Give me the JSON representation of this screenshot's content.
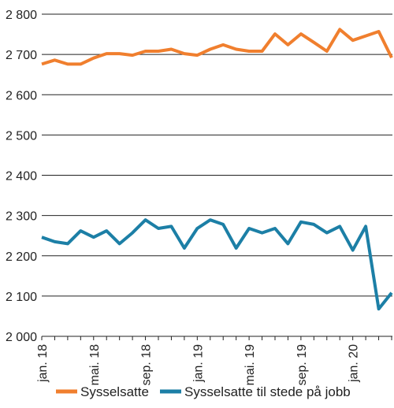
{
  "chart_data": {
    "type": "line",
    "title": "",
    "xlabel": "",
    "ylabel": "",
    "ylim": [
      2000,
      2800
    ],
    "y_ticks": [
      2000,
      2100,
      2200,
      2300,
      2400,
      2500,
      2600,
      2700,
      2800
    ],
    "y_tick_labels": [
      "2 000",
      "2 100",
      "2 200",
      "2 300",
      "2 400",
      "2 500",
      "2 600",
      "2 700",
      "2 800"
    ],
    "x": [
      "2018-01",
      "2018-02",
      "2018-03",
      "2018-04",
      "2018-05",
      "2018-06",
      "2018-07",
      "2018-08",
      "2018-09",
      "2018-10",
      "2018-11",
      "2018-12",
      "2019-01",
      "2019-02",
      "2019-03",
      "2019-04",
      "2019-05",
      "2019-06",
      "2019-07",
      "2019-08",
      "2019-09",
      "2019-10",
      "2019-11",
      "2019-12",
      "2020-01",
      "2020-02",
      "2020-03",
      "2020-04"
    ],
    "x_tick_labels": [
      {
        "x": "2018-01",
        "label": "jan. 18"
      },
      {
        "x": "2018-05",
        "label": "mai. 18"
      },
      {
        "x": "2018-09",
        "label": "sep. 18"
      },
      {
        "x": "2019-01",
        "label": "jan. 19"
      },
      {
        "x": "2019-05",
        "label": "mai. 19"
      },
      {
        "x": "2019-09",
        "label": "sep. 19"
      },
      {
        "x": "2020-01",
        "label": "jan. 20"
      }
    ],
    "grid": "horizontal",
    "legend_position": "bottom",
    "series": [
      {
        "name": "Sysselsatte",
        "color": "#f07f2e",
        "values": [
          2676,
          2686,
          2676,
          2676,
          2691,
          2702,
          2702,
          2698,
          2708,
          2708,
          2713,
          2702,
          2698,
          2713,
          2724,
          2713,
          2708,
          2708,
          2751,
          2724,
          2751,
          2730,
          2708,
          2762,
          2735,
          2746,
          2757,
          2692
        ]
      },
      {
        "name": "Sysselsatte til stede på jobb",
        "color": "#1c7fa6",
        "values": [
          2246,
          2235,
          2230,
          2262,
          2246,
          2262,
          2230,
          2257,
          2289,
          2268,
          2273,
          2219,
          2268,
          2289,
          2278,
          2219,
          2268,
          2257,
          2268,
          2230,
          2284,
          2278,
          2257,
          2273,
          2214,
          2273,
          2068,
          2108
        ]
      }
    ]
  }
}
